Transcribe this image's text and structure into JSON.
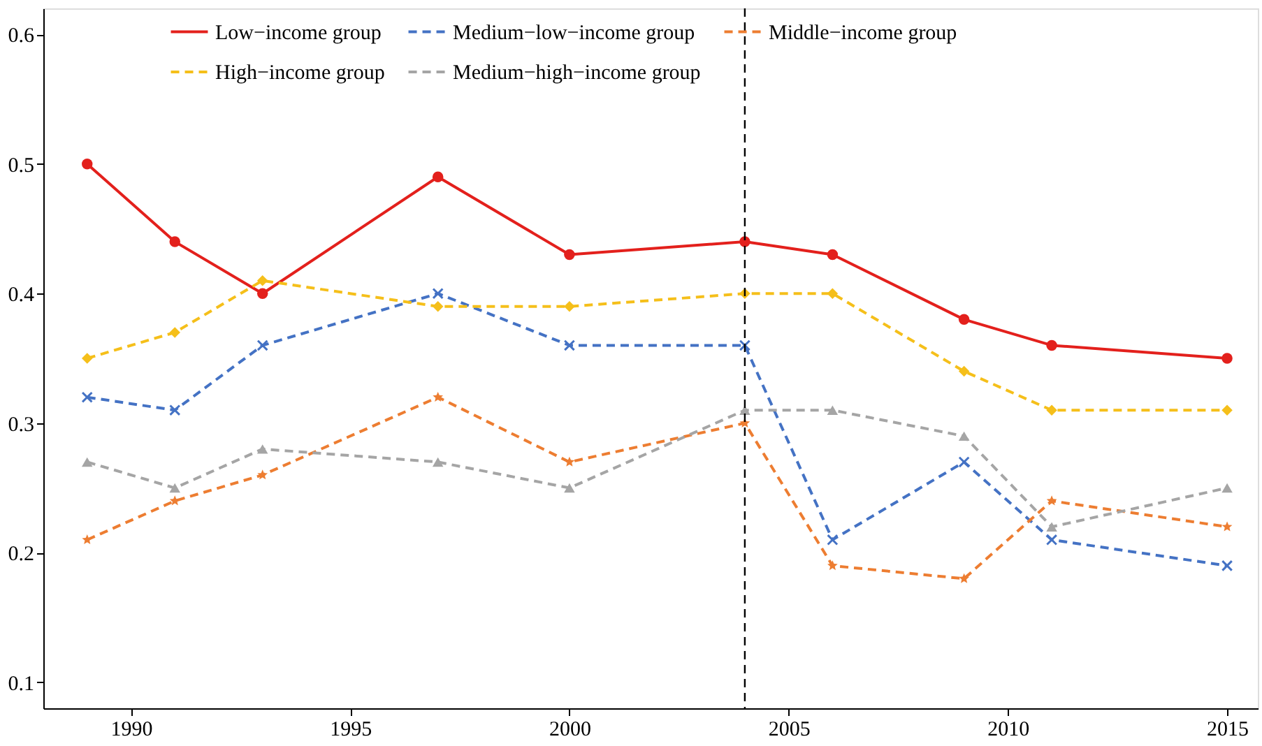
{
  "chart_data": {
    "type": "line",
    "x": [
      1989,
      1991,
      1993,
      1997,
      2000,
      2004,
      2006,
      2009,
      2011,
      2015
    ],
    "series": [
      {
        "name": "Low−income group",
        "color": "#e3201c",
        "line_style": "solid",
        "marker": "circle",
        "values": [
          0.5,
          0.44,
          0.4,
          0.49,
          0.43,
          0.44,
          0.43,
          0.38,
          0.36,
          0.35
        ]
      },
      {
        "name": "Medium−low−income group",
        "color": "#4472c4",
        "line_style": "dashed",
        "marker": "cross",
        "values": [
          0.32,
          0.31,
          0.36,
          0.4,
          0.36,
          0.36,
          0.21,
          0.27,
          0.21,
          0.19
        ]
      },
      {
        "name": "Middle−income group",
        "color": "#ed7d31",
        "line_style": "dashed",
        "marker": "star",
        "values": [
          0.21,
          0.24,
          0.26,
          0.32,
          0.27,
          0.3,
          0.19,
          0.18,
          0.24,
          0.22
        ]
      },
      {
        "name": "High−income group",
        "color": "#f5bf1a",
        "line_style": "dashed",
        "marker": "diamond",
        "values": [
          0.35,
          0.37,
          0.41,
          0.39,
          0.39,
          0.4,
          0.4,
          0.34,
          0.31,
          0.31
        ]
      },
      {
        "name": "Medium−high−income group",
        "color": "#a5a5a5",
        "line_style": "dashed",
        "marker": "triangle",
        "values": [
          0.27,
          0.25,
          0.28,
          0.27,
          0.25,
          0.31,
          0.31,
          0.29,
          0.22,
          0.25
        ]
      }
    ],
    "xlim": [
      1988,
      2015.7
    ],
    "xticks": [
      1990,
      1995,
      2000,
      2005,
      2010,
      2015
    ],
    "ylim": [
      0.08,
      0.62
    ],
    "yticks": [
      0.1,
      0.2,
      0.3,
      0.4,
      0.5,
      0.6
    ],
    "ref_lines": [
      {
        "axis": "x",
        "value": 2004,
        "color": "#000000",
        "line_style": "dashed"
      }
    ],
    "grid": false,
    "legend": "top"
  }
}
